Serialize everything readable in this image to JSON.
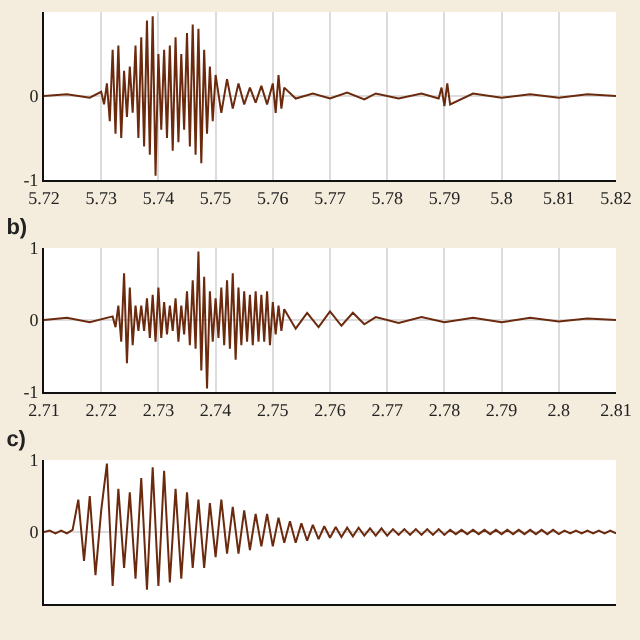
{
  "chart_data": [
    {
      "type": "line",
      "xlim": [
        5.72,
        5.82
      ],
      "xticks": [
        5.72,
        5.73,
        5.74,
        5.75,
        5.76,
        5.77,
        5.78,
        5.79,
        5.8,
        5.81,
        5.82
      ],
      "ylim": [
        -1,
        1
      ],
      "yticks": [
        -1,
        0
      ],
      "grid": true,
      "series": [
        {
          "color": "#6b2a0e",
          "x": [
            5.72,
            5.724,
            5.728,
            5.73,
            5.7305,
            5.731,
            5.7315,
            5.732,
            5.7325,
            5.733,
            5.7335,
            5.734,
            5.7345,
            5.735,
            5.7355,
            5.736,
            5.7365,
            5.737,
            5.7375,
            5.738,
            5.7385,
            5.739,
            5.7395,
            5.74,
            5.7405,
            5.741,
            5.7415,
            5.742,
            5.7425,
            5.743,
            5.7435,
            5.744,
            5.7445,
            5.745,
            5.7455,
            5.746,
            5.7465,
            5.747,
            5.7475,
            5.748,
            5.7485,
            5.749,
            5.7495,
            5.75,
            5.751,
            5.752,
            5.753,
            5.754,
            5.755,
            5.756,
            5.757,
            5.758,
            5.759,
            5.76,
            5.7605,
            5.761,
            5.7615,
            5.762,
            5.764,
            5.767,
            5.77,
            5.773,
            5.776,
            5.778,
            5.782,
            5.786,
            5.789,
            5.7895,
            5.79,
            5.7905,
            5.791,
            5.795,
            5.8,
            5.805,
            5.81,
            5.815,
            5.82
          ],
          "values": [
            0,
            0.02,
            -0.02,
            0.05,
            -0.1,
            0.15,
            -0.3,
            0.55,
            -0.45,
            0.6,
            -0.5,
            0.3,
            -0.25,
            0.35,
            -0.2,
            0.6,
            -0.5,
            0.7,
            -0.6,
            0.9,
            -0.7,
            0.95,
            -0.95,
            0.5,
            -0.4,
            0.55,
            -0.5,
            0.6,
            -0.65,
            0.7,
            -0.55,
            0.5,
            -0.4,
            0.75,
            -0.6,
            0.85,
            -0.7,
            0.8,
            -0.8,
            0.55,
            -0.45,
            0.35,
            -0.3,
            0.25,
            -0.2,
            0.2,
            -0.15,
            0.15,
            -0.1,
            0.1,
            -0.08,
            0.12,
            -0.1,
            0.15,
            -0.2,
            0.25,
            -0.15,
            0.1,
            -0.03,
            0.03,
            -0.03,
            0.04,
            -0.04,
            0.03,
            -0.03,
            0.03,
            -0.03,
            0.1,
            -0.12,
            0.15,
            -0.1,
            0.03,
            -0.02,
            0.02,
            -0.02,
            0.02,
            0
          ]
        }
      ]
    },
    {
      "type": "line",
      "title": "b)",
      "xlim": [
        2.71,
        2.81
      ],
      "xticks": [
        2.71,
        2.72,
        2.73,
        2.74,
        2.75,
        2.76,
        2.77,
        2.78,
        2.79,
        2.8,
        2.81
      ],
      "ylim": [
        -1,
        1
      ],
      "yticks": [
        -1,
        0,
        1
      ],
      "grid": true,
      "series": [
        {
          "color": "#6b2a0e",
          "x": [
            2.71,
            2.714,
            2.718,
            2.722,
            2.7225,
            2.723,
            2.7235,
            2.724,
            2.7245,
            2.725,
            2.7255,
            2.726,
            2.7265,
            2.727,
            2.7275,
            2.728,
            2.7285,
            2.729,
            2.7295,
            2.73,
            2.7305,
            2.731,
            2.7315,
            2.732,
            2.7325,
            2.733,
            2.7335,
            2.734,
            2.7345,
            2.735,
            2.7355,
            2.736,
            2.7365,
            2.737,
            2.7375,
            2.738,
            2.7385,
            2.739,
            2.7395,
            2.74,
            2.7405,
            2.741,
            2.7415,
            2.742,
            2.7425,
            2.743,
            2.7435,
            2.744,
            2.7445,
            2.745,
            2.7455,
            2.746,
            2.7465,
            2.747,
            2.7475,
            2.748,
            2.7485,
            2.749,
            2.7495,
            2.75,
            2.7505,
            2.751,
            2.7515,
            2.752,
            2.754,
            2.756,
            2.758,
            2.76,
            2.762,
            2.764,
            2.766,
            2.768,
            2.772,
            2.776,
            2.78,
            2.785,
            2.79,
            2.795,
            2.8,
            2.805,
            2.81
          ],
          "values": [
            0,
            0.03,
            -0.03,
            0.05,
            -0.1,
            0.2,
            -0.3,
            0.65,
            -0.6,
            0.45,
            -0.35,
            0.2,
            -0.15,
            0.2,
            -0.15,
            0.3,
            -0.25,
            0.35,
            -0.3,
            0.45,
            -0.25,
            0.25,
            -0.2,
            0.2,
            -0.15,
            0.3,
            -0.3,
            0.2,
            -0.2,
            0.4,
            -0.35,
            0.55,
            -0.4,
            0.95,
            -0.7,
            0.6,
            -0.95,
            0.4,
            -0.3,
            0.3,
            -0.25,
            0.45,
            -0.35,
            0.55,
            -0.4,
            0.65,
            -0.55,
            0.45,
            -0.35,
            0.4,
            -0.3,
            0.35,
            -0.35,
            0.4,
            -0.3,
            0.35,
            -0.3,
            0.4,
            -0.35,
            0.25,
            -0.2,
            0.2,
            -0.15,
            0.15,
            -0.12,
            0.1,
            -0.1,
            0.12,
            -0.08,
            0.1,
            -0.06,
            0.04,
            -0.04,
            0.04,
            -0.03,
            0.03,
            -0.03,
            0.03,
            -0.02,
            0.02,
            0
          ]
        }
      ]
    },
    {
      "type": "line",
      "title": "c)",
      "categories": [
        null,
        null,
        null,
        null,
        null,
        null,
        null,
        null,
        null,
        null,
        null,
        null,
        null,
        null,
        null,
        null,
        null,
        null,
        null,
        null,
        null,
        null,
        null,
        null,
        null,
        null,
        null,
        null,
        null,
        null,
        null,
        null,
        null,
        null,
        null,
        null,
        null,
        null,
        null,
        null,
        null,
        null,
        null,
        null,
        null,
        null,
        null,
        null,
        null,
        null,
        null,
        null,
        null,
        null,
        null,
        null,
        null,
        null,
        null,
        null,
        null,
        null,
        null,
        null,
        null,
        null,
        null,
        null,
        null,
        null,
        null,
        null,
        null,
        null,
        null,
        null,
        null,
        null,
        null,
        null,
        null,
        null,
        null,
        null,
        null,
        null,
        null,
        null,
        null,
        null,
        null,
        null,
        null,
        null,
        null,
        null,
        null,
        null,
        null,
        null,
        null
      ],
      "ylim": [
        -1,
        1
      ],
      "yticks": [
        0,
        1
      ],
      "grid": "y",
      "tick_labels": "y",
      "series": [
        {
          "color": "#6b2a0e",
          "values": [
            0,
            0.02,
            -0.02,
            0.02,
            -0.02,
            0.03,
            0.45,
            -0.4,
            0.5,
            -0.6,
            0.3,
            0.95,
            -0.75,
            0.6,
            -0.5,
            0.55,
            -0.65,
            0.75,
            -0.8,
            0.9,
            -0.75,
            0.85,
            -0.7,
            0.6,
            -0.65,
            0.55,
            -0.5,
            0.45,
            -0.5,
            0.4,
            -0.35,
            0.45,
            -0.3,
            0.35,
            -0.3,
            0.3,
            -0.25,
            0.25,
            -0.2,
            0.25,
            -0.2,
            0.2,
            -0.15,
            0.15,
            -0.15,
            0.12,
            -0.12,
            0.1,
            -0.1,
            0.08,
            -0.08,
            0.07,
            -0.07,
            0.06,
            -0.06,
            0.06,
            -0.05,
            0.05,
            -0.05,
            0.05,
            -0.05,
            0.04,
            -0.04,
            0.04,
            -0.04,
            0.04,
            -0.04,
            0.04,
            -0.04,
            0.04,
            -0.04,
            0.03,
            -0.03,
            0.03,
            -0.03,
            0.03,
            -0.03,
            0.03,
            -0.03,
            0.03,
            -0.03,
            0.03,
            -0.03,
            0.03,
            -0.03,
            0.03,
            -0.03,
            0.03,
            -0.03,
            0.03,
            -0.03,
            0.02,
            -0.02,
            0.02,
            -0.02,
            0.02,
            -0.02,
            0.02,
            -0.02,
            0.02,
            -0.02
          ]
        }
      ]
    }
  ]
}
